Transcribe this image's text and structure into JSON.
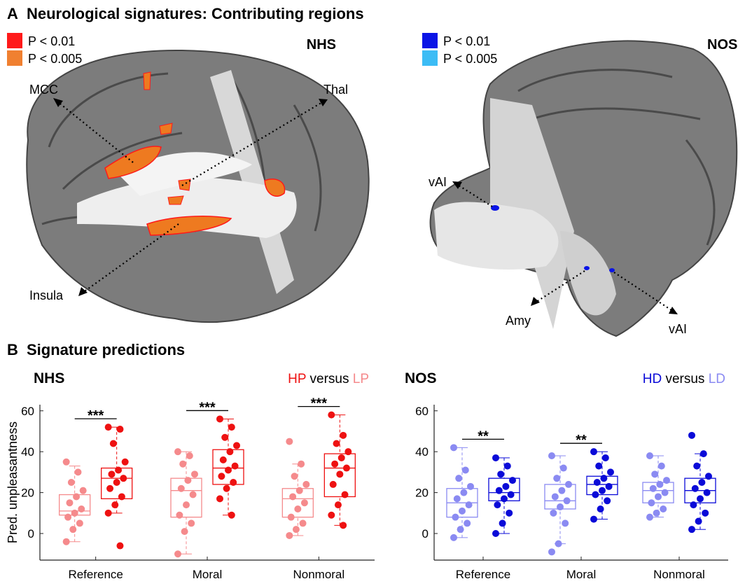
{
  "panel_a": {
    "panel_label": "A",
    "title": "Neurological signatures: Contributing regions",
    "left": {
      "name": "NHS",
      "legend": [
        {
          "label": "P < 0.01",
          "color": "#ff1a1a"
        },
        {
          "label": "P < 0.005",
          "color": "#f08030"
        }
      ],
      "regions": [
        "MCC",
        "Thal",
        "Insula"
      ]
    },
    "right": {
      "name": "NOS",
      "legend": [
        {
          "label": "P < 0.01",
          "color": "#0a14e6"
        },
        {
          "label": "P < 0.005",
          "color": "#3cbcf5"
        }
      ],
      "regions": [
        "vAI",
        "Amy",
        "vAI"
      ]
    }
  },
  "panel_b": {
    "panel_label": "B",
    "title": "Signature predictions"
  },
  "chart_data": [
    {
      "type": "box",
      "title": "NHS",
      "y_label": "Pred. unpleasantness",
      "legend_separator": "versus",
      "categories": [
        "Reference",
        "Moral",
        "Nonmoral"
      ],
      "ylim": [
        -13,
        63
      ],
      "yticks": [
        0,
        20,
        40,
        60
      ],
      "significance": [
        "***",
        "***",
        "***"
      ],
      "series": [
        {
          "name": "HP",
          "color": "#ee1111",
          "boxes": [
            {
              "min": 10,
              "q1": 17,
              "median": 27,
              "q3": 32,
              "max": 52
            },
            {
              "min": 9,
              "q1": 24,
              "median": 32,
              "q3": 41,
              "max": 56
            },
            {
              "min": 4,
              "q1": 18,
              "median": 32,
              "q3": 39,
              "max": 58
            }
          ],
          "points": [
            [
              52,
              51,
              44,
              35,
              31,
              29,
              27,
              25,
              22,
              18,
              14,
              10,
              -6
            ],
            [
              56,
              52,
              47,
              43,
              40,
              36,
              33,
              31,
              28,
              25,
              22,
              17,
              9
            ],
            [
              58,
              48,
              44,
              40,
              37,
              34,
              32,
              29,
              24,
              19,
              14,
              9,
              4
            ]
          ]
        },
        {
          "name": "LP",
          "color": "#f58a8c",
          "boxes": [
            {
              "min": -4,
              "q1": 9,
              "median": 11,
              "q3": 19,
              "max": 33
            },
            {
              "min": -10,
              "q1": 8,
              "median": 21,
              "q3": 27,
              "max": 40
            },
            {
              "min": -1,
              "q1": 8,
              "median": 17,
              "q3": 22,
              "max": 34
            }
          ],
          "points": [
            [
              35,
              30,
              25,
              21,
              18,
              15,
              12,
              10,
              8,
              5,
              2,
              -4
            ],
            [
              40,
              38,
              34,
              29,
              26,
              22,
              19,
              14,
              9,
              5,
              1,
              -10
            ],
            [
              45,
              34,
              28,
              24,
              21,
              18,
              15,
              12,
              8,
              5,
              2,
              -1
            ]
          ]
        }
      ]
    },
    {
      "type": "box",
      "title": "NOS",
      "legend_separator": "versus",
      "categories": [
        "Reference",
        "Moral",
        "Nonmoral"
      ],
      "ylim": [
        -13,
        63
      ],
      "yticks": [
        0,
        20,
        40,
        60
      ],
      "significance": [
        "**",
        "**",
        null
      ],
      "series": [
        {
          "name": "HD",
          "color": "#0a0ad8",
          "boxes": [
            {
              "min": 0,
              "q1": 16,
              "median": 20,
              "q3": 27,
              "max": 37
            },
            {
              "min": 7,
              "q1": 19,
              "median": 24,
              "q3": 28,
              "max": 40
            },
            {
              "min": 2,
              "q1": 15,
              "median": 21,
              "q3": 27,
              "max": 39
            }
          ],
          "points": [
            [
              37,
              33,
              29,
              26,
              23,
              21,
              19,
              17,
              14,
              10,
              5,
              0
            ],
            [
              40,
              37,
              33,
              30,
              27,
              25,
              23,
              21,
              19,
              16,
              12,
              7
            ],
            [
              48,
              39,
              33,
              28,
              25,
              22,
              20,
              17,
              14,
              10,
              6,
              2
            ]
          ]
        },
        {
          "name": "LD",
          "color": "#8a8af2",
          "boxes": [
            {
              "min": -2,
              "q1": 8,
              "median": 15,
              "q3": 22,
              "max": 42
            },
            {
              "min": -5,
              "q1": 12,
              "median": 16,
              "q3": 24,
              "max": 38
            },
            {
              "min": 8,
              "q1": 15,
              "median": 21,
              "q3": 25,
              "max": 38
            }
          ],
          "points": [
            [
              42,
              31,
              27,
              23,
              20,
              17,
              14,
              11,
              8,
              5,
              2,
              -2
            ],
            [
              38,
              32,
              27,
              24,
              21,
              18,
              16,
              13,
              10,
              5,
              -5,
              -9
            ],
            [
              38,
              33,
              29,
              26,
              24,
              22,
              20,
              18,
              15,
              12,
              10,
              8
            ]
          ]
        }
      ]
    }
  ]
}
